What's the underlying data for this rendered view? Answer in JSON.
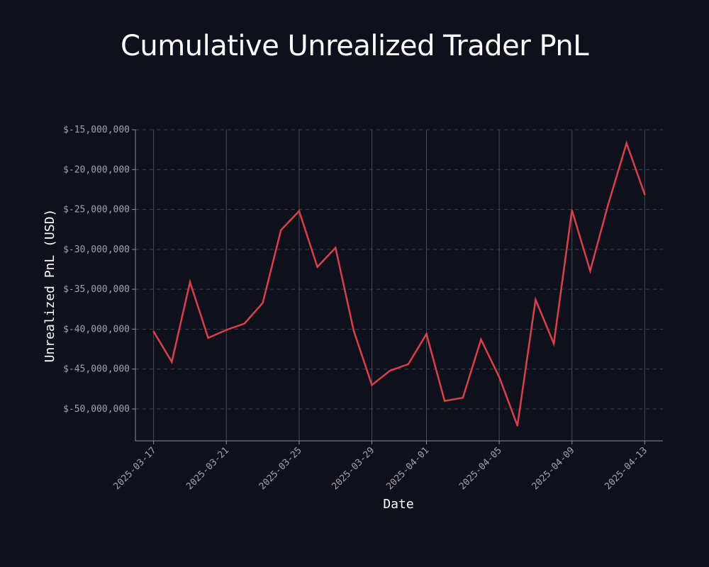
{
  "chart_data": {
    "type": "line",
    "title": "Cumulative Unrealized Trader PnL",
    "xlabel": "Date",
    "ylabel": "Unrealized PnL (USD)",
    "x": [
      "2025-03-17",
      "2025-03-18",
      "2025-03-19",
      "2025-03-20",
      "2025-03-21",
      "2025-03-22",
      "2025-03-23",
      "2025-03-24",
      "2025-03-25",
      "2025-03-26",
      "2025-03-27",
      "2025-03-28",
      "2025-03-29",
      "2025-03-30",
      "2025-03-31",
      "2025-04-01",
      "2025-04-02",
      "2025-04-03",
      "2025-04-04",
      "2025-04-05",
      "2025-04-06",
      "2025-04-07",
      "2025-04-08",
      "2025-04-09",
      "2025-04-10",
      "2025-04-11",
      "2025-04-12",
      "2025-04-13"
    ],
    "series": [
      {
        "values": [
          -40300000,
          -44100000,
          -34100000,
          -41100000,
          -40100000,
          -39300000,
          -36700000,
          -27600000,
          -25200000,
          -32200000,
          -29800000,
          -40200000,
          -47000000,
          -45200000,
          -44400000,
          -40600000,
          -49000000,
          -48600000,
          -41300000,
          -46000000,
          -52100000,
          -36300000,
          -41800000,
          -25100000,
          -32700000,
          -24300000,
          -16700000,
          -23100000
        ],
        "color": "#d9404a"
      }
    ],
    "x_ticks": [
      "2025-03-17",
      "2025-03-21",
      "2025-03-25",
      "2025-03-29",
      "2025-04-01",
      "2025-04-05",
      "2025-04-09",
      "2025-04-13"
    ],
    "y_ticks": [
      -15000000,
      -20000000,
      -25000000,
      -30000000,
      -35000000,
      -40000000,
      -45000000,
      -50000000
    ],
    "y_tick_labels": [
      "$-15,000,000",
      "$-20,000,000",
      "$-25,000,000",
      "$-30,000,000",
      "$-35,000,000",
      "$-40,000,000",
      "$-45,000,000",
      "$-50,000,000"
    ],
    "ylim": [
      -54000000,
      -15000000
    ],
    "xlim": [
      "2025-03-16",
      "2025-04-14"
    ],
    "grid": true,
    "legend": "none"
  },
  "colors": {
    "background": "#0e111c",
    "text": "#ffffff",
    "tick_text": "#9ea3b4",
    "grid_x": "#454a5a",
    "grid_y": "#3b4050",
    "axis": "#8a8f9e",
    "line": "#d9404a"
  }
}
